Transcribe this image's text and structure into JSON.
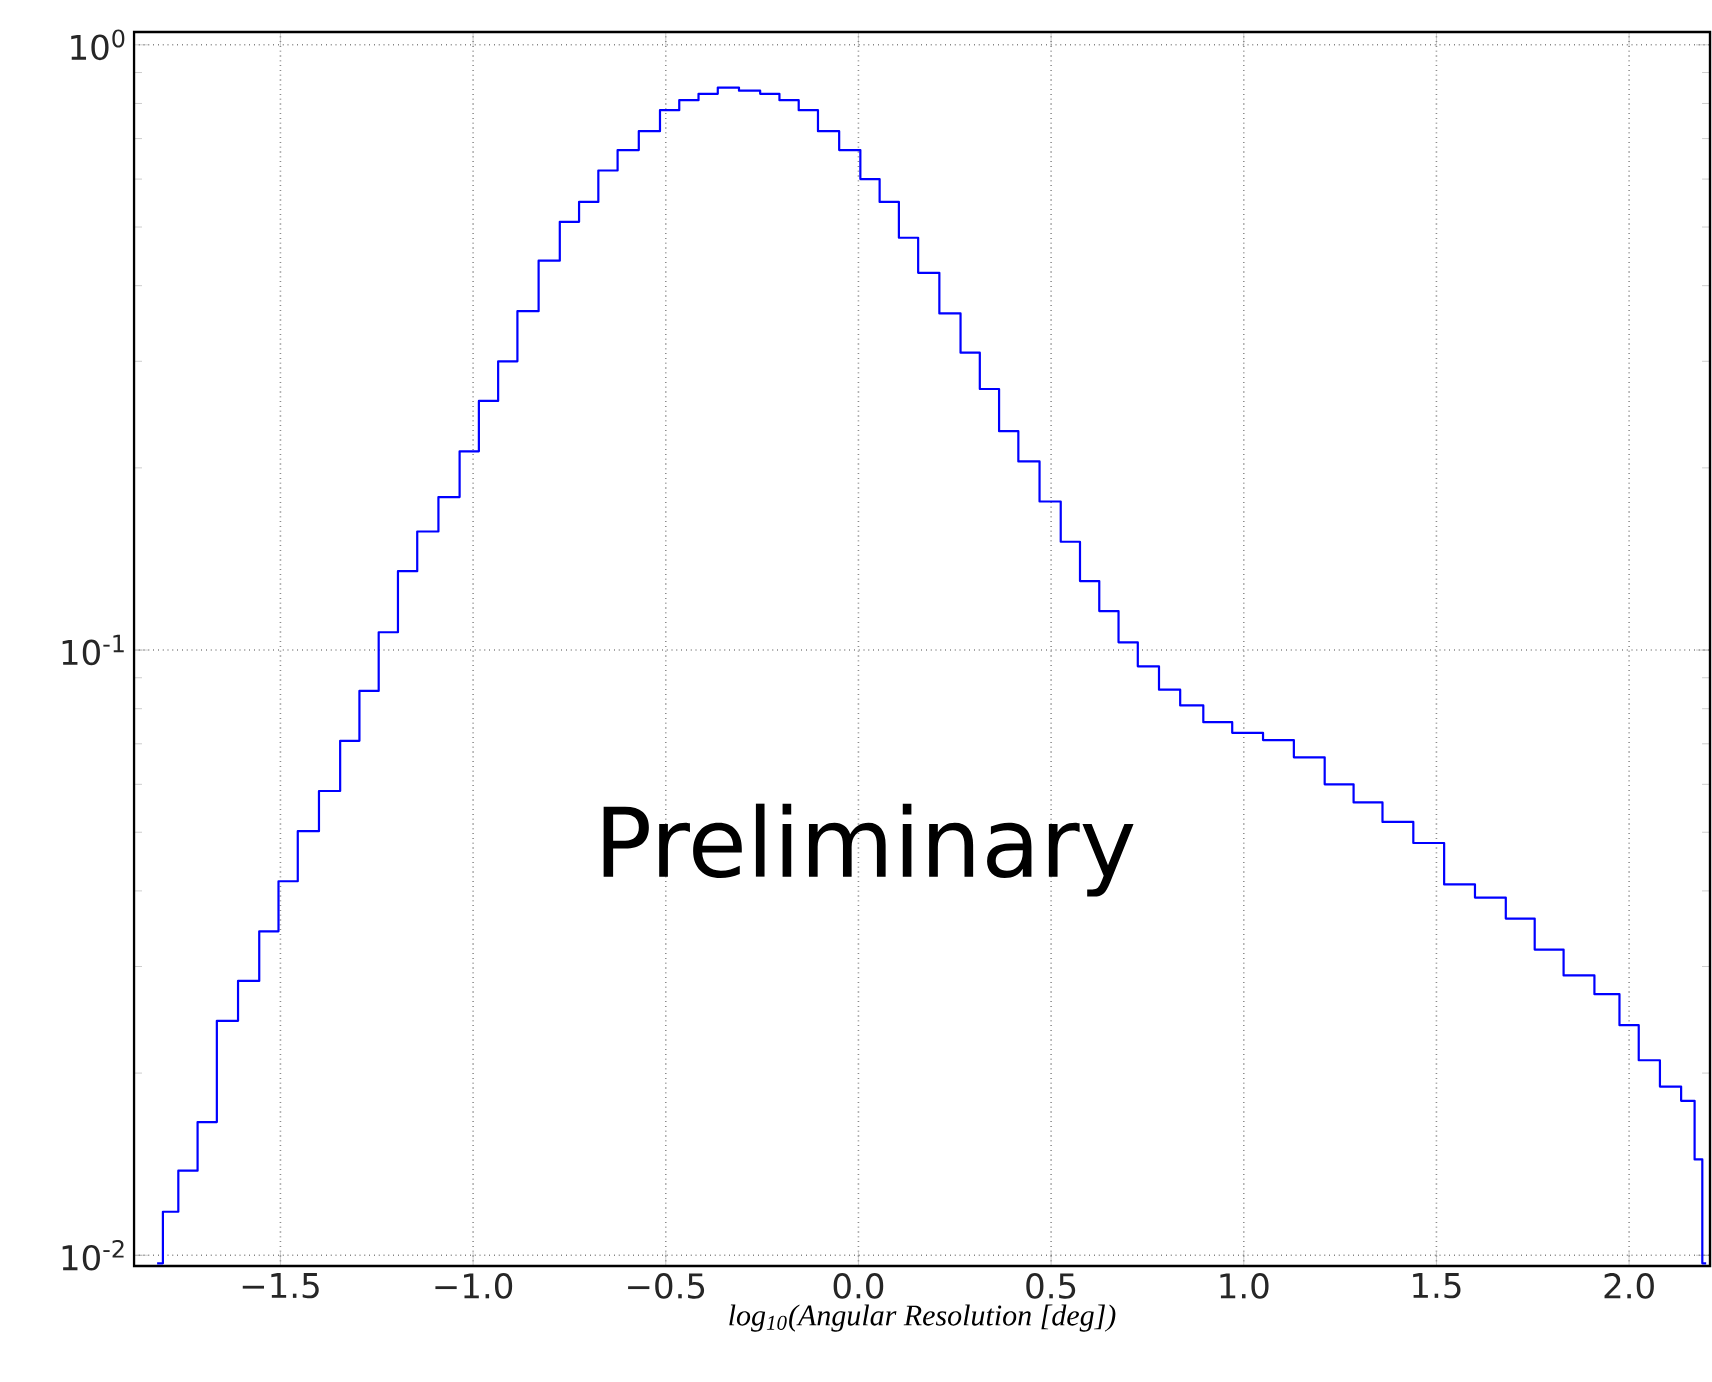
{
  "chart_data": {
    "type": "step",
    "xlabel": "log$_{10}$(Angular Resolution [deg])",
    "log": true,
    "grid": true,
    "marker": "none",
    "line_style": "solid",
    "xlim": [
      -1.88,
      2.21
    ],
    "ylim": [
      0.0096,
      1.05
    ],
    "xticks": [
      {
        "value": -1.5,
        "label": "−1.5"
      },
      {
        "value": -1.0,
        "label": "−1.0"
      },
      {
        "value": -0.5,
        "label": "−0.5"
      },
      {
        "value": 0.0,
        "label": "0.0"
      },
      {
        "value": 0.5,
        "label": "0.5"
      },
      {
        "value": 1.0,
        "label": "1.0"
      },
      {
        "value": 1.5,
        "label": "1.5"
      },
      {
        "value": 2.0,
        "label": "2.0"
      }
    ],
    "yticks": [
      {
        "value": 0.01,
        "label": "10$^{-2}$"
      },
      {
        "value": 0.1,
        "label": "10$^{-1}$"
      },
      {
        "value": 1,
        "label": "10$^{0}$"
      }
    ],
    "annotations": [
      "Preliminary"
    ],
    "series": [
      {
        "color": "#0000ff",
        "x": [
          -1.82,
          -1.79,
          -1.74,
          -1.69,
          -1.64,
          -1.58,
          -1.53,
          -1.48,
          -1.43,
          -1.37,
          -1.32,
          -1.27,
          -1.22,
          -1.17,
          -1.12,
          -1.06,
          -1.01,
          -0.96,
          -0.91,
          -0.86,
          -0.8,
          -0.75,
          -0.7,
          -0.65,
          -0.6,
          -0.54,
          -0.49,
          -0.44,
          -0.39,
          -0.34,
          -0.28,
          -0.23,
          -0.18,
          -0.13,
          -0.08,
          -0.02,
          0.03,
          0.08,
          0.13,
          0.18,
          0.24,
          0.29,
          0.34,
          0.39,
          0.44,
          0.5,
          0.55,
          0.6,
          0.65,
          0.7,
          0.75,
          0.81,
          0.86,
          0.93,
          1.01,
          1.09,
          1.17,
          1.25,
          1.32,
          1.4,
          1.48,
          1.56,
          1.64,
          1.72,
          1.79,
          1.87,
          1.95,
          2.0,
          2.05,
          2.11,
          2.16,
          2.18,
          2.2
        ],
        "values": [
          0.0097,
          0.0118,
          0.0138,
          0.0166,
          0.0244,
          0.0284,
          0.0343,
          0.0415,
          0.0502,
          0.0585,
          0.0708,
          0.0856,
          0.107,
          0.135,
          0.157,
          0.179,
          0.213,
          0.258,
          0.3,
          0.363,
          0.44,
          0.51,
          0.55,
          0.62,
          0.67,
          0.72,
          0.78,
          0.81,
          0.83,
          0.85,
          0.84,
          0.83,
          0.81,
          0.78,
          0.72,
          0.67,
          0.6,
          0.55,
          0.48,
          0.42,
          0.36,
          0.31,
          0.27,
          0.23,
          0.205,
          0.176,
          0.151,
          0.13,
          0.116,
          0.103,
          0.094,
          0.086,
          0.081,
          0.076,
          0.073,
          0.071,
          0.0665,
          0.06,
          0.056,
          0.052,
          0.048,
          0.041,
          0.039,
          0.036,
          0.032,
          0.029,
          0.027,
          0.024,
          0.021,
          0.019,
          0.018,
          0.0144,
          0.0097
        ]
      }
    ]
  }
}
